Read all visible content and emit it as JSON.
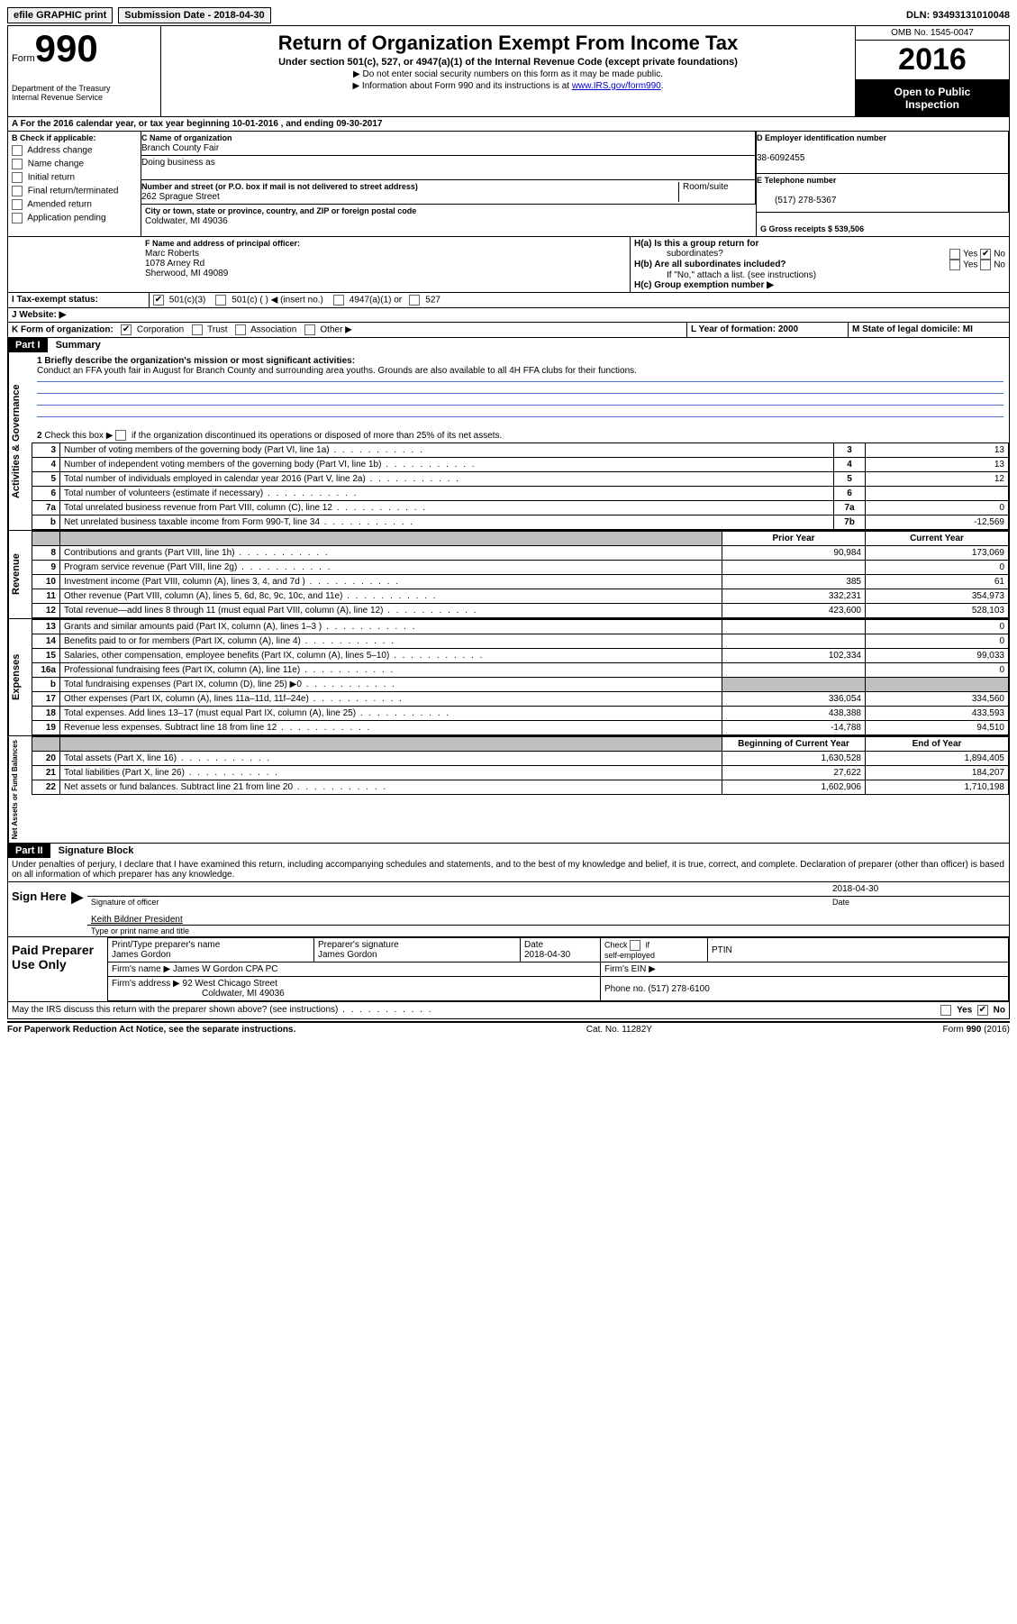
{
  "topbar": {
    "efile": "efile GRAPHIC print",
    "submission_label": "Submission Date - 2018-04-30",
    "dln_label": "DLN: 93493131010048"
  },
  "header": {
    "form_label": "Form",
    "form_num": "990",
    "dept1": "Department of the Treasury",
    "dept2": "Internal Revenue Service",
    "title": "Return of Organization Exempt From Income Tax",
    "subtitle": "Under section 501(c), 527, or 4947(a)(1) of the Internal Revenue Code (except private foundations)",
    "note1": "▶ Do not enter social security numbers on this form as it may be made public.",
    "note2_pre": "▶ Information about Form 990 and its instructions is at ",
    "note2_link": "www.IRS.gov/form990",
    "omb": "OMB No. 1545-0047",
    "year": "2016",
    "open1": "Open to Public",
    "open2": "Inspection"
  },
  "row_a": "A  For the 2016 calendar year, or tax year beginning 10-01-2016   , and ending 09-30-2017",
  "box_b": {
    "hdr": "B Check if applicable:",
    "items": [
      "Address change",
      "Name change",
      "Initial return",
      "Final return/terminated",
      "Amended return",
      "Application pending"
    ]
  },
  "box_c": {
    "hdr": "C Name of organization",
    "name": "Branch County Fair",
    "dba": "Doing business as",
    "addr_hdr": "Number and street (or P.O. box if mail is not delivered to street address)",
    "room": "Room/suite",
    "addr": "262 Sprague Street",
    "city_hdr": "City or town, state or province, country, and ZIP or foreign postal code",
    "city": "Coldwater, MI  49036"
  },
  "box_d": {
    "hdr": "D Employer identification number",
    "val": "38-6092455"
  },
  "box_e": {
    "hdr": "E Telephone number",
    "val": "(517) 278-5367"
  },
  "box_g": {
    "hdr": "G Gross receipts $ 539,506"
  },
  "box_f": {
    "hdr": "F Name and address of principal officer:",
    "l1": "Marc Roberts",
    "l2": "1078 Arney Rd",
    "l3": "Sherwood, MI  49089"
  },
  "box_h": {
    "a": "H(a)  Is this a group return for",
    "a2": "subordinates?",
    "b": "H(b)  Are all subordinates included?",
    "b2": "If \"No,\" attach a list. (see instructions)",
    "c": "H(c)  Group exemption number ▶",
    "yes": "Yes",
    "no": "No"
  },
  "row_i": {
    "lbl": "I  Tax-exempt status:",
    "o1": "501(c)(3)",
    "o2": "501(c) (  ) ◀ (insert no.)",
    "o3": "4947(a)(1) or",
    "o4": "527"
  },
  "row_j": "J  Website: ▶",
  "row_k": {
    "lbl": "K Form of organization:",
    "o1": "Corporation",
    "o2": "Trust",
    "o3": "Association",
    "o4": "Other ▶"
  },
  "row_l": "L Year of formation: 2000",
  "row_m": "M State of legal domicile: MI",
  "part1": {
    "hdr": "Part I",
    "title": "Summary"
  },
  "summary": {
    "line1_lbl": "1  Briefly describe the organization's mission or most significant activities:",
    "line1_txt": "Conduct an FFA youth fair in August for Branch County and surrounding area youths. Grounds are also available to all 4H FFA clubs for their functions.",
    "line2": "2  Check this box ▶       if the organization discontinued its operations or disposed of more than 25% of its net assets.",
    "rows_gov": [
      {
        "n": "3",
        "d": "Number of voting members of the governing body (Part VI, line 1a)",
        "b": "3",
        "v": "13"
      },
      {
        "n": "4",
        "d": "Number of independent voting members of the governing body (Part VI, line 1b)",
        "b": "4",
        "v": "13"
      },
      {
        "n": "5",
        "d": "Total number of individuals employed in calendar year 2016 (Part V, line 2a)",
        "b": "5",
        "v": "12"
      },
      {
        "n": "6",
        "d": "Total number of volunteers (estimate if necessary)",
        "b": "6",
        "v": ""
      },
      {
        "n": "7a",
        "d": "Total unrelated business revenue from Part VIII, column (C), line 12",
        "b": "7a",
        "v": "0"
      },
      {
        "n": "b",
        "d": "Net unrelated business taxable income from Form 990-T, line 34",
        "b": "7b",
        "v": "-12,569"
      }
    ],
    "hdr_prior": "Prior Year",
    "hdr_curr": "Current Year",
    "rows_rev": [
      {
        "n": "8",
        "d": "Contributions and grants (Part VIII, line 1h)",
        "p": "90,984",
        "c": "173,069"
      },
      {
        "n": "9",
        "d": "Program service revenue (Part VIII, line 2g)",
        "p": "",
        "c": "0"
      },
      {
        "n": "10",
        "d": "Investment income (Part VIII, column (A), lines 3, 4, and 7d )",
        "p": "385",
        "c": "61"
      },
      {
        "n": "11",
        "d": "Other revenue (Part VIII, column (A), lines 5, 6d, 8c, 9c, 10c, and 11e)",
        "p": "332,231",
        "c": "354,973"
      },
      {
        "n": "12",
        "d": "Total revenue—add lines 8 through 11 (must equal Part VIII, column (A), line 12)",
        "p": "423,600",
        "c": "528,103"
      }
    ],
    "rows_exp": [
      {
        "n": "13",
        "d": "Grants and similar amounts paid (Part IX, column (A), lines 1–3 )",
        "p": "",
        "c": "0"
      },
      {
        "n": "14",
        "d": "Benefits paid to or for members (Part IX, column (A), line 4)",
        "p": "",
        "c": "0"
      },
      {
        "n": "15",
        "d": "Salaries, other compensation, employee benefits (Part IX, column (A), lines 5–10)",
        "p": "102,334",
        "c": "99,033"
      },
      {
        "n": "16a",
        "d": "Professional fundraising fees (Part IX, column (A), line 11e)",
        "p": "",
        "c": "0"
      },
      {
        "n": "b",
        "d": "Total fundraising expenses (Part IX, column (D), line 25) ▶0",
        "p": "GREY",
        "c": "GREY"
      },
      {
        "n": "17",
        "d": "Other expenses (Part IX, column (A), lines 11a–11d, 11f–24e)",
        "p": "336,054",
        "c": "334,560"
      },
      {
        "n": "18",
        "d": "Total expenses. Add lines 13–17 (must equal Part IX, column (A), line 25)",
        "p": "438,388",
        "c": "433,593"
      },
      {
        "n": "19",
        "d": "Revenue less expenses. Subtract line 18 from line 12",
        "p": "-14,788",
        "c": "94,510"
      }
    ],
    "hdr_beg": "Beginning of Current Year",
    "hdr_end": "End of Year",
    "rows_net": [
      {
        "n": "20",
        "d": "Total assets (Part X, line 16)",
        "p": "1,630,528",
        "c": "1,894,405"
      },
      {
        "n": "21",
        "d": "Total liabilities (Part X, line 26)",
        "p": "27,622",
        "c": "184,207"
      },
      {
        "n": "22",
        "d": "Net assets or fund balances. Subtract line 21 from line 20",
        "p": "1,602,906",
        "c": "1,710,198"
      }
    ]
  },
  "strips": {
    "gov": "Activities & Governance",
    "rev": "Revenue",
    "exp": "Expenses",
    "net": "Net Assets or Fund Balances"
  },
  "part2": {
    "hdr": "Part II",
    "title": "Signature Block",
    "decl": "Under penalties of perjury, I declare that I have examined this return, including accompanying schedules and statements, and to the best of my knowledge and belief, it is true, correct, and complete. Declaration of preparer (other than officer) is based on all information of which preparer has any knowledge.",
    "sign_here": "Sign Here",
    "sig_officer": "Signature of officer",
    "date_lbl": "Date",
    "date_val": "2018-04-30",
    "name_title": "Keith Bildner President",
    "type_name": "Type or print name and title",
    "paid": "Paid Preparer Use Only",
    "pt_name_h": "Print/Type preparer's name",
    "pt_name": "James Gordon",
    "pt_sig_h": "Preparer's signature",
    "pt_sig": "James Gordon",
    "pt_date_h": "Date",
    "pt_date": "2018-04-30",
    "pt_check": "Check         if self-employed",
    "ptin": "PTIN",
    "firm_name_h": "Firm's name      ▶",
    "firm_name": "James W Gordon CPA PC",
    "firm_ein": "Firm's EIN ▶",
    "firm_addr_h": "Firm's address ▶",
    "firm_addr": "92 West Chicago Street",
    "firm_city": "Coldwater, MI  49036",
    "firm_phone_h": "Phone no.",
    "firm_phone": "(517) 278-6100",
    "discuss": "May the IRS discuss this return with the preparer shown above? (see instructions)"
  },
  "footer": {
    "l": "For Paperwork Reduction Act Notice, see the separate instructions.",
    "c": "Cat. No. 11282Y",
    "r": "Form 990 (2016)"
  }
}
